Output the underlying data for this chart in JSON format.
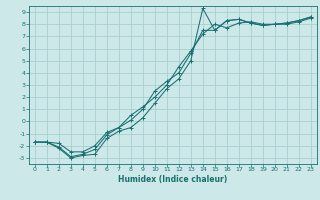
{
  "xlabel": "Humidex (Indice chaleur)",
  "bg_color": "#cce8e8",
  "grid_color": "#aacfcf",
  "line_color": "#1a7070",
  "xlim": [
    -0.5,
    23.5
  ],
  "ylim": [
    -3.5,
    9.5
  ],
  "xticks": [
    0,
    1,
    2,
    3,
    4,
    5,
    6,
    7,
    8,
    9,
    10,
    11,
    12,
    13,
    14,
    15,
    16,
    17,
    18,
    19,
    20,
    21,
    22,
    23
  ],
  "yticks": [
    -3,
    -2,
    -1,
    0,
    1,
    2,
    3,
    4,
    5,
    6,
    7,
    8,
    9
  ],
  "line1_x": [
    0,
    1,
    2,
    3,
    4,
    5,
    6,
    7,
    8,
    9,
    10,
    11,
    12,
    13,
    14,
    15,
    16,
    17,
    18,
    19,
    20,
    21,
    22,
    23
  ],
  "line1_y": [
    -1.7,
    -1.7,
    -2.2,
    -3.0,
    -2.8,
    -2.7,
    -1.4,
    -0.8,
    -0.5,
    0.3,
    1.5,
    2.7,
    3.5,
    5.0,
    9.3,
    7.5,
    8.3,
    8.4,
    8.1,
    7.9,
    8.0,
    8.1,
    8.3,
    8.6
  ],
  "line2_x": [
    0,
    1,
    2,
    3,
    4,
    5,
    6,
    7,
    8,
    9,
    10,
    11,
    12,
    13,
    14,
    15,
    16,
    17,
    18,
    19,
    20,
    21,
    22,
    23
  ],
  "line2_y": [
    -1.7,
    -1.7,
    -2.1,
    -2.9,
    -2.7,
    -2.3,
    -1.1,
    -0.5,
    0.1,
    1.0,
    2.5,
    3.3,
    4.0,
    5.6,
    7.5,
    7.5,
    8.3,
    8.4,
    8.1,
    7.9,
    8.0,
    8.1,
    8.3,
    8.6
  ],
  "line3_x": [
    0,
    1,
    2,
    3,
    4,
    5,
    6,
    7,
    8,
    9,
    10,
    11,
    12,
    13,
    14,
    15,
    16,
    17,
    18,
    19,
    20,
    21,
    22,
    23
  ],
  "line3_y": [
    -1.7,
    -1.7,
    -1.8,
    -2.5,
    -2.5,
    -2.0,
    -0.9,
    -0.5,
    0.5,
    1.2,
    2.0,
    3.0,
    4.5,
    5.8,
    7.2,
    8.0,
    7.7,
    8.1,
    8.2,
    8.0,
    8.0,
    8.0,
    8.2,
    8.5
  ]
}
